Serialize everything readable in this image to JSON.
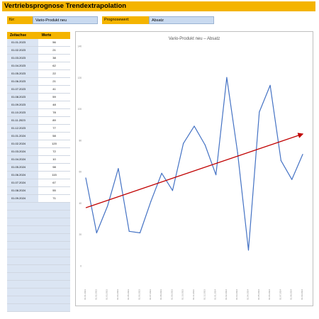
{
  "title": "Vertriebsprognose Trendextrapolation",
  "fields": {
    "for_label": "für:",
    "for_value": "Vario-Produkt neu",
    "prognose_label": "Prognosewert:",
    "prognose_value": "Absatz"
  },
  "table": {
    "headers": [
      "Zeitachse",
      "Werte"
    ],
    "rows": [
      [
        "01.01.2023",
        "56"
      ],
      [
        "01.02.2023",
        "21"
      ],
      [
        "01.03.2023",
        "38"
      ],
      [
        "01.04.2023",
        "62"
      ],
      [
        "01.05.2023",
        "22"
      ],
      [
        "01.06.2023",
        "21"
      ],
      [
        "01.07.2023",
        "41"
      ],
      [
        "01.08.2023",
        "59"
      ],
      [
        "01.09.2023",
        "48"
      ],
      [
        "01.10.2023",
        "78"
      ],
      [
        "01.11.2023",
        "89"
      ],
      [
        "01.12.2023",
        "77"
      ],
      [
        "01.01.2024",
        "58"
      ],
      [
        "01.02.2024",
        "120"
      ],
      [
        "01.03.2024",
        "72"
      ],
      [
        "01.04.2024",
        "10"
      ],
      [
        "01.05.2024",
        "98"
      ],
      [
        "01.06.2024",
        "115"
      ],
      [
        "01.07.2024",
        "67"
      ],
      [
        "01.08.2024",
        "55"
      ],
      [
        "01.09.2024",
        "71"
      ]
    ],
    "empty_rows": 14
  },
  "chart_data": {
    "type": "line",
    "title": "Vario-Produkt neu – Absatz",
    "categories": [
      "01.01.2023",
      "01.02.2023",
      "01.03.2023",
      "01.04.2023",
      "01.05.2023",
      "01.06.2023",
      "01.07.2023",
      "01.08.2023",
      "01.09.2023",
      "01.10.2023",
      "01.11.2023",
      "01.12.2023",
      "01.01.2024",
      "01.02.2024",
      "01.03.2024",
      "01.04.2024",
      "01.05.2024",
      "01.06.2024",
      "01.07.2024",
      "01.08.2024",
      "01.09.2024"
    ],
    "series": [
      {
        "values": [
          56,
          21,
          38,
          62,
          22,
          21,
          41,
          59,
          48,
          78,
          89,
          77,
          58,
          120,
          72,
          10,
          98,
          115,
          67,
          55,
          71
        ],
        "color": "#4472c4"
      }
    ],
    "trend": {
      "start": 37,
      "end": 84,
      "color": "#c00000"
    },
    "ylim": [
      0,
      140
    ],
    "yticks": [
      0,
      20,
      40,
      60,
      80,
      100,
      120,
      140
    ],
    "grid": false
  }
}
